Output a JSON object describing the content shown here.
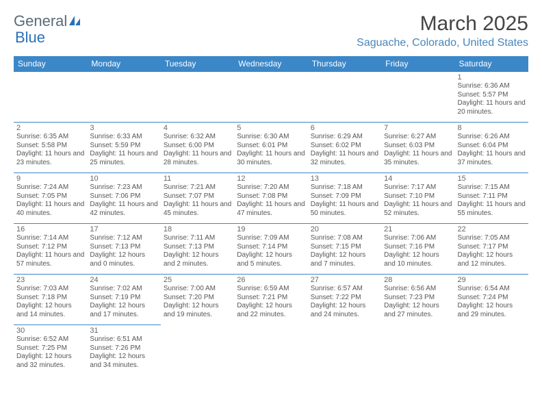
{
  "logo": {
    "general": "General",
    "blue": "Blue"
  },
  "title": "March 2025",
  "location": "Saguache, Colorado, United States",
  "colors": {
    "header_bg": "#3b87c8",
    "header_text": "#ffffff",
    "cell_border": "#3b87c8",
    "location_text": "#4885bd",
    "title_text": "#444444",
    "body_text": "#555555",
    "daynum_text": "#666666",
    "logo_general": "#5a6b7a",
    "logo_blue": "#2a70b8"
  },
  "weekdays": [
    "Sunday",
    "Monday",
    "Tuesday",
    "Wednesday",
    "Thursday",
    "Friday",
    "Saturday"
  ],
  "weeks": [
    [
      null,
      null,
      null,
      null,
      null,
      null,
      {
        "n": "1",
        "sr": "Sunrise: 6:36 AM",
        "ss": "Sunset: 5:57 PM",
        "dl": "Daylight: 11 hours and 20 minutes."
      }
    ],
    [
      {
        "n": "2",
        "sr": "Sunrise: 6:35 AM",
        "ss": "Sunset: 5:58 PM",
        "dl": "Daylight: 11 hours and 23 minutes."
      },
      {
        "n": "3",
        "sr": "Sunrise: 6:33 AM",
        "ss": "Sunset: 5:59 PM",
        "dl": "Daylight: 11 hours and 25 minutes."
      },
      {
        "n": "4",
        "sr": "Sunrise: 6:32 AM",
        "ss": "Sunset: 6:00 PM",
        "dl": "Daylight: 11 hours and 28 minutes."
      },
      {
        "n": "5",
        "sr": "Sunrise: 6:30 AM",
        "ss": "Sunset: 6:01 PM",
        "dl": "Daylight: 11 hours and 30 minutes."
      },
      {
        "n": "6",
        "sr": "Sunrise: 6:29 AM",
        "ss": "Sunset: 6:02 PM",
        "dl": "Daylight: 11 hours and 32 minutes."
      },
      {
        "n": "7",
        "sr": "Sunrise: 6:27 AM",
        "ss": "Sunset: 6:03 PM",
        "dl": "Daylight: 11 hours and 35 minutes."
      },
      {
        "n": "8",
        "sr": "Sunrise: 6:26 AM",
        "ss": "Sunset: 6:04 PM",
        "dl": "Daylight: 11 hours and 37 minutes."
      }
    ],
    [
      {
        "n": "9",
        "sr": "Sunrise: 7:24 AM",
        "ss": "Sunset: 7:05 PM",
        "dl": "Daylight: 11 hours and 40 minutes."
      },
      {
        "n": "10",
        "sr": "Sunrise: 7:23 AM",
        "ss": "Sunset: 7:06 PM",
        "dl": "Daylight: 11 hours and 42 minutes."
      },
      {
        "n": "11",
        "sr": "Sunrise: 7:21 AM",
        "ss": "Sunset: 7:07 PM",
        "dl": "Daylight: 11 hours and 45 minutes."
      },
      {
        "n": "12",
        "sr": "Sunrise: 7:20 AM",
        "ss": "Sunset: 7:08 PM",
        "dl": "Daylight: 11 hours and 47 minutes."
      },
      {
        "n": "13",
        "sr": "Sunrise: 7:18 AM",
        "ss": "Sunset: 7:09 PM",
        "dl": "Daylight: 11 hours and 50 minutes."
      },
      {
        "n": "14",
        "sr": "Sunrise: 7:17 AM",
        "ss": "Sunset: 7:10 PM",
        "dl": "Daylight: 11 hours and 52 minutes."
      },
      {
        "n": "15",
        "sr": "Sunrise: 7:15 AM",
        "ss": "Sunset: 7:11 PM",
        "dl": "Daylight: 11 hours and 55 minutes."
      }
    ],
    [
      {
        "n": "16",
        "sr": "Sunrise: 7:14 AM",
        "ss": "Sunset: 7:12 PM",
        "dl": "Daylight: 11 hours and 57 minutes."
      },
      {
        "n": "17",
        "sr": "Sunrise: 7:12 AM",
        "ss": "Sunset: 7:13 PM",
        "dl": "Daylight: 12 hours and 0 minutes."
      },
      {
        "n": "18",
        "sr": "Sunrise: 7:11 AM",
        "ss": "Sunset: 7:13 PM",
        "dl": "Daylight: 12 hours and 2 minutes."
      },
      {
        "n": "19",
        "sr": "Sunrise: 7:09 AM",
        "ss": "Sunset: 7:14 PM",
        "dl": "Daylight: 12 hours and 5 minutes."
      },
      {
        "n": "20",
        "sr": "Sunrise: 7:08 AM",
        "ss": "Sunset: 7:15 PM",
        "dl": "Daylight: 12 hours and 7 minutes."
      },
      {
        "n": "21",
        "sr": "Sunrise: 7:06 AM",
        "ss": "Sunset: 7:16 PM",
        "dl": "Daylight: 12 hours and 10 minutes."
      },
      {
        "n": "22",
        "sr": "Sunrise: 7:05 AM",
        "ss": "Sunset: 7:17 PM",
        "dl": "Daylight: 12 hours and 12 minutes."
      }
    ],
    [
      {
        "n": "23",
        "sr": "Sunrise: 7:03 AM",
        "ss": "Sunset: 7:18 PM",
        "dl": "Daylight: 12 hours and 14 minutes."
      },
      {
        "n": "24",
        "sr": "Sunrise: 7:02 AM",
        "ss": "Sunset: 7:19 PM",
        "dl": "Daylight: 12 hours and 17 minutes."
      },
      {
        "n": "25",
        "sr": "Sunrise: 7:00 AM",
        "ss": "Sunset: 7:20 PM",
        "dl": "Daylight: 12 hours and 19 minutes."
      },
      {
        "n": "26",
        "sr": "Sunrise: 6:59 AM",
        "ss": "Sunset: 7:21 PM",
        "dl": "Daylight: 12 hours and 22 minutes."
      },
      {
        "n": "27",
        "sr": "Sunrise: 6:57 AM",
        "ss": "Sunset: 7:22 PM",
        "dl": "Daylight: 12 hours and 24 minutes."
      },
      {
        "n": "28",
        "sr": "Sunrise: 6:56 AM",
        "ss": "Sunset: 7:23 PM",
        "dl": "Daylight: 12 hours and 27 minutes."
      },
      {
        "n": "29",
        "sr": "Sunrise: 6:54 AM",
        "ss": "Sunset: 7:24 PM",
        "dl": "Daylight: 12 hours and 29 minutes."
      }
    ],
    [
      {
        "n": "30",
        "sr": "Sunrise: 6:52 AM",
        "ss": "Sunset: 7:25 PM",
        "dl": "Daylight: 12 hours and 32 minutes."
      },
      {
        "n": "31",
        "sr": "Sunrise: 6:51 AM",
        "ss": "Sunset: 7:26 PM",
        "dl": "Daylight: 12 hours and 34 minutes."
      },
      null,
      null,
      null,
      null,
      null
    ]
  ]
}
